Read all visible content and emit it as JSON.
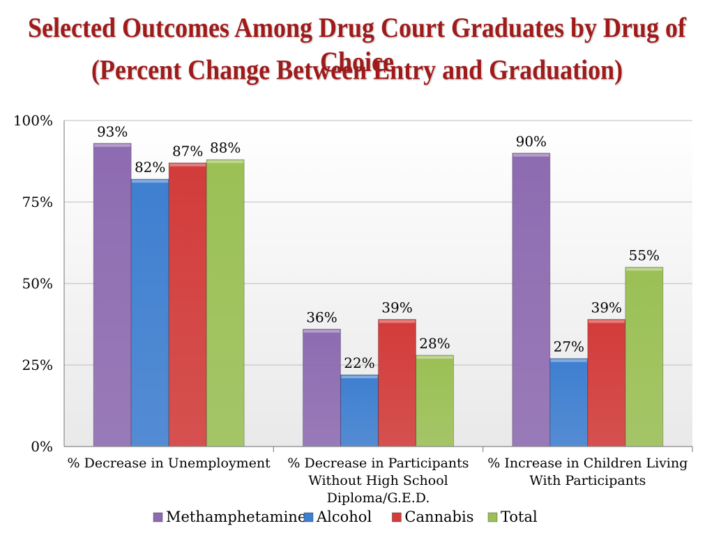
{
  "chart_data": {
    "type": "bar",
    "title_line1": "Selected Outcomes Among Drug Court Graduates by Drug of Choice",
    "title_line2": "(Percent Change Between Entry and Graduation)",
    "categories": [
      [
        "% Decrease in Unemployment"
      ],
      [
        "% Decrease in Participants",
        "Without High School",
        "Diploma/G.E.D."
      ],
      [
        "% Increase in Children Living",
        "With Participants"
      ]
    ],
    "series": [
      {
        "name": "Methamphetamine",
        "values": [
          93,
          36,
          90
        ],
        "color": "#8e6bb1"
      },
      {
        "name": "Alcohol",
        "values": [
          82,
          22,
          27
        ],
        "color": "#3f7fd0"
      },
      {
        "name": "Cannabis",
        "values": [
          87,
          39,
          39
        ],
        "color": "#d23c3a"
      },
      {
        "name": "Total",
        "values": [
          88,
          28,
          55
        ],
        "color": "#9bc055"
      }
    ],
    "yticks": [
      "0%",
      "25%",
      "50%",
      "75%",
      "100%"
    ],
    "ylim": [
      0,
      100
    ],
    "grid": true,
    "legend": "bottom"
  }
}
